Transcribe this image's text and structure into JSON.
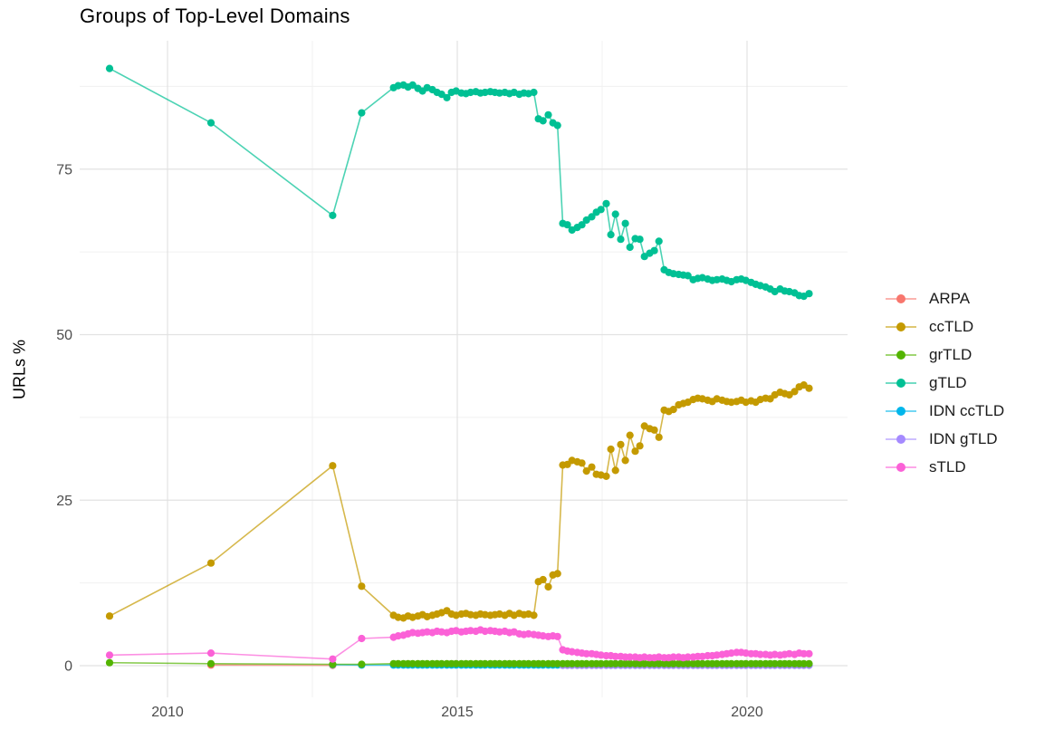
{
  "title": "Groups of Top-Level Domains",
  "axes": {
    "y_label": "URLs %",
    "y_tick_values": [
      0,
      25,
      50,
      75
    ],
    "y_tick_labels": [
      "0",
      "25",
      "50",
      "75"
    ],
    "y_minor": [
      12.5,
      37.5,
      62.5,
      87.5
    ],
    "x_tick_values": [
      2010,
      2015,
      2020
    ],
    "x_tick_labels": [
      "2010",
      "2015",
      "2020"
    ],
    "x_minor": [
      2012.5,
      2017.5
    ],
    "x_range": [
      2008.5,
      2021.7
    ],
    "y_range": [
      -5,
      94
    ],
    "grid": "on"
  },
  "colors": {
    "major_grid": "#e2e2e2",
    "minor_grid": "#f0f0f0",
    "tick_text": "#4d4d4d",
    "title_text": "#000000"
  },
  "legend": {
    "position": "right",
    "items": [
      {
        "label": "ARPA",
        "color": "#F8766D"
      },
      {
        "label": "ccTLD",
        "color": "#C49A00"
      },
      {
        "label": "grTLD",
        "color": "#53B400"
      },
      {
        "label": "gTLD",
        "color": "#00C094"
      },
      {
        "label": "IDN ccTLD",
        "color": "#00B6EB"
      },
      {
        "label": "IDN gTLD",
        "color": "#A58AFF"
      },
      {
        "label": "sTLD",
        "color": "#FB61D7"
      }
    ]
  },
  "chart_data": {
    "type": "line",
    "title": "Groups of Top-Level Domains",
    "xlabel": "",
    "ylabel": "URLs %",
    "legend_position": "right",
    "dense_x": [
      2013.9,
      2013.98,
      2014.07,
      2014.15,
      2014.23,
      2014.32,
      2014.4,
      2014.48,
      2014.57,
      2014.65,
      2014.73,
      2014.82,
      2014.9,
      2014.98,
      2015.07,
      2015.15,
      2015.23,
      2015.32,
      2015.4,
      2015.48,
      2015.57,
      2015.65,
      2015.73,
      2015.82,
      2015.9,
      2015.98,
      2016.07,
      2016.15,
      2016.23,
      2016.32,
      2016.4,
      2016.48,
      2016.57,
      2016.65,
      2016.73,
      2016.82,
      2016.9,
      2016.98,
      2017.07,
      2017.15,
      2017.23,
      2017.32,
      2017.4,
      2017.48,
      2017.57,
      2017.65,
      2017.73,
      2017.82,
      2017.9,
      2017.98,
      2018.07,
      2018.15,
      2018.23,
      2018.32,
      2018.4,
      2018.48,
      2018.57,
      2018.65,
      2018.73,
      2018.82,
      2018.9,
      2018.98,
      2019.07,
      2019.15,
      2019.23,
      2019.32,
      2019.4,
      2019.48,
      2019.57,
      2019.65,
      2019.73,
      2019.82,
      2019.9,
      2019.98,
      2020.07,
      2020.15,
      2020.23,
      2020.32,
      2020.4,
      2020.48,
      2020.57,
      2020.65,
      2020.73,
      2020.82,
      2020.9,
      2020.98,
      2021.07
    ],
    "series": [
      {
        "name": "ARPA",
        "color": "#F8766D",
        "x": [
          2010.75,
          2012.85
        ],
        "y": [
          0.1,
          0.05
        ]
      },
      {
        "name": "IDN ccTLD",
        "color": "#00B6EB",
        "x_head": [
          2012.85,
          2013.35
        ],
        "y_head": [
          0.15,
          0.1
        ],
        "dense_from": 0,
        "y_const": 0.1
      },
      {
        "name": "IDN gTLD",
        "color": "#A58AFF",
        "x_head": [],
        "y_head": [],
        "dense_from": 35,
        "y_const": 0.05
      },
      {
        "name": "grTLD",
        "color": "#53B400",
        "x_head": [
          2009,
          2010.75,
          2012.85,
          2013.35
        ],
        "y_head": [
          0.45,
          0.3,
          0.2,
          0.2
        ],
        "dense_from": 0,
        "y_const": 0.3
      },
      {
        "name": "sTLD",
        "color": "#FB61D7",
        "x_head": [
          2009,
          2010.75,
          2012.85,
          2013.35
        ],
        "y_head": [
          1.6,
          1.9,
          1.0,
          4.1
        ],
        "dense_from": 0,
        "y_dense": [
          4.3,
          4.5,
          4.6,
          4.8,
          5,
          4.9,
          5,
          5.1,
          5,
          5.2,
          5.1,
          5,
          5.2,
          5.3,
          5.1,
          5.2,
          5.3,
          5.2,
          5.4,
          5.2,
          5.3,
          5.2,
          5.1,
          5.2,
          5,
          5.1,
          4.8,
          4.7,
          4.8,
          4.7,
          4.6,
          4.5,
          4.4,
          4.5,
          4.4,
          2.4,
          2.2,
          2.1,
          2,
          1.9,
          1.8,
          1.8,
          1.7,
          1.6,
          1.5,
          1.5,
          1.4,
          1.4,
          1.3,
          1.3,
          1.3,
          1.2,
          1.3,
          1.2,
          1.2,
          1.3,
          1.2,
          1.2,
          1.3,
          1.3,
          1.2,
          1.3,
          1.3,
          1.4,
          1.4,
          1.5,
          1.5,
          1.6,
          1.7,
          1.8,
          1.9,
          2,
          2,
          1.9,
          1.8,
          1.8,
          1.7,
          1.7,
          1.6,
          1.7,
          1.6,
          1.7,
          1.8,
          1.7,
          1.9,
          1.8,
          1.8
        ]
      },
      {
        "name": "ccTLD",
        "color": "#C49A00",
        "x_head": [
          2009,
          2010.75,
          2012.85,
          2013.35
        ],
        "y_head": [
          7.5,
          15.5,
          30.2,
          12.0
        ],
        "dense_from": 0,
        "y_dense": [
          7.6,
          7.3,
          7.2,
          7.5,
          7.3,
          7.5,
          7.7,
          7.4,
          7.6,
          7.8,
          8,
          8.3,
          7.8,
          7.6,
          7.8,
          7.9,
          7.7,
          7.6,
          7.8,
          7.7,
          7.6,
          7.7,
          7.8,
          7.6,
          7.9,
          7.6,
          7.9,
          7.7,
          7.8,
          7.6,
          12.7,
          13,
          11.9,
          13.7,
          13.9,
          30.3,
          30.4,
          31,
          30.8,
          30.6,
          29.4,
          30,
          28.9,
          28.8,
          28.6,
          32.7,
          29.5,
          33.4,
          31,
          34.8,
          32.4,
          33.2,
          36.2,
          35.8,
          35.6,
          34.5,
          38.6,
          38.4,
          38.7,
          39.4,
          39.6,
          39.8,
          40.2,
          40.4,
          40.3,
          40.1,
          39.9,
          40.3,
          40.1,
          39.9,
          39.8,
          39.9,
          40.1,
          39.8,
          40,
          39.8,
          40.2,
          40.4,
          40.3,
          40.9,
          41.3,
          41.1,
          40.9,
          41.4,
          42.1,
          42.4,
          41.9
        ]
      },
      {
        "name": "gTLD",
        "color": "#00C094",
        "x_head": [
          2009,
          2010.75,
          2012.85,
          2013.35
        ],
        "y_head": [
          90.2,
          82.0,
          68.0,
          83.5
        ],
        "dense_from": 0,
        "y_dense": [
          87.3,
          87.6,
          87.7,
          87.4,
          87.7,
          87.2,
          86.8,
          87.3,
          87,
          86.6,
          86.3,
          85.8,
          86.6,
          86.8,
          86.5,
          86.4,
          86.6,
          86.7,
          86.5,
          86.6,
          86.7,
          86.6,
          86.5,
          86.6,
          86.4,
          86.6,
          86.3,
          86.5,
          86.4,
          86.6,
          82.6,
          82.3,
          83.2,
          82,
          81.6,
          66.8,
          66.6,
          65.8,
          66.2,
          66.6,
          67.3,
          67.8,
          68.5,
          68.9,
          69.8,
          65.1,
          68.2,
          64.4,
          66.8,
          63.2,
          64.5,
          64.4,
          61.8,
          62.3,
          62.7,
          64.1,
          59.8,
          59.4,
          59.2,
          59.1,
          59,
          58.9,
          58.3,
          58.5,
          58.6,
          58.4,
          58.2,
          58.3,
          58.4,
          58.2,
          58,
          58.3,
          58.4,
          58.2,
          57.9,
          57.6,
          57.4,
          57.2,
          56.9,
          56.5,
          56.9,
          56.6,
          56.5,
          56.3,
          55.9,
          55.8,
          56.2
        ]
      }
    ]
  }
}
